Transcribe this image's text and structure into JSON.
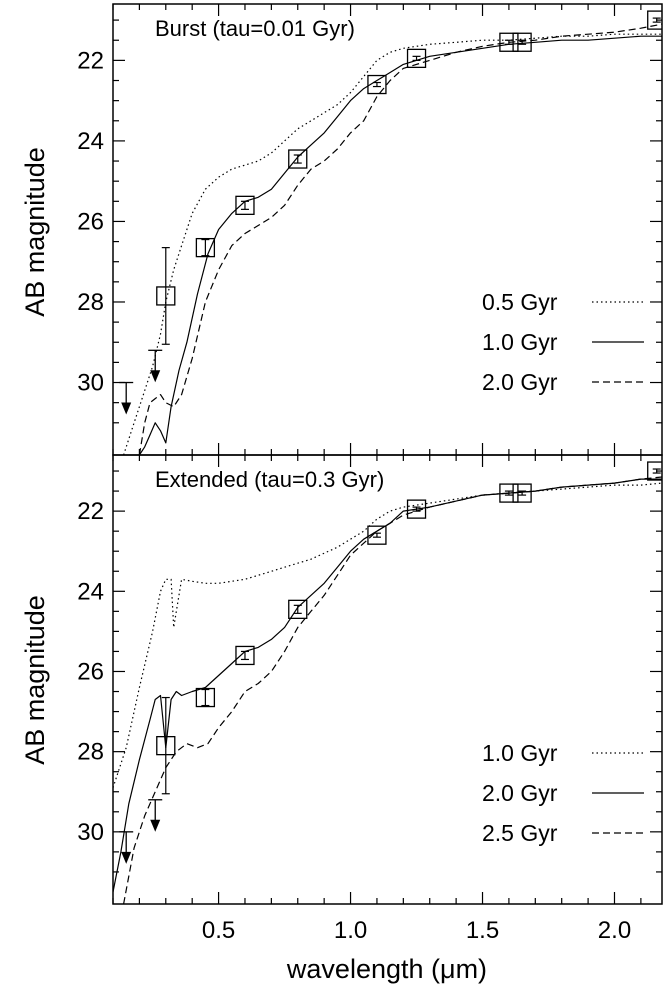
{
  "chart_data": [
    {
      "type": "line",
      "title": "Burst (tau=0.01 Gyr)",
      "xlabel": "",
      "ylabel": "AB magnitude",
      "xlim": [
        0.1,
        2.18
      ],
      "ylim": [
        31.8,
        20.6
      ],
      "y_inverted": true,
      "xticks": [
        "0.5",
        "1.0",
        "1.5",
        "2.0"
      ],
      "yticks": [
        "22",
        "24",
        "26",
        "28",
        "30"
      ],
      "legend_position": "bottom-right",
      "series": [
        {
          "name": "0.5 Gyr",
          "style": "dotted",
          "x": [
            0.14,
            0.18,
            0.22,
            0.25,
            0.28,
            0.3,
            0.33,
            0.36,
            0.4,
            0.45,
            0.5,
            0.55,
            0.6,
            0.65,
            0.7,
            0.75,
            0.8,
            0.85,
            0.9,
            0.95,
            1.0,
            1.05,
            1.1,
            1.15,
            1.2,
            1.3,
            1.4,
            1.5,
            1.6,
            1.7,
            1.8,
            1.9,
            2.0,
            2.1,
            2.18
          ],
          "y": [
            31.8,
            31.0,
            30.2,
            29.6,
            28.8,
            28.0,
            27.2,
            26.6,
            25.8,
            25.2,
            24.9,
            24.7,
            24.6,
            24.5,
            24.3,
            24.0,
            23.7,
            23.5,
            23.3,
            23.1,
            22.8,
            22.4,
            22.0,
            21.8,
            21.7,
            21.6,
            21.55,
            21.5,
            21.5,
            21.45,
            21.4,
            21.4,
            21.35,
            21.35,
            21.35
          ]
        },
        {
          "name": "1.0 Gyr",
          "style": "solid",
          "x": [
            0.2,
            0.22,
            0.24,
            0.26,
            0.28,
            0.3,
            0.32,
            0.35,
            0.38,
            0.42,
            0.46,
            0.5,
            0.55,
            0.6,
            0.65,
            0.7,
            0.75,
            0.8,
            0.85,
            0.9,
            0.95,
            1.0,
            1.05,
            1.1,
            1.15,
            1.2,
            1.3,
            1.4,
            1.5,
            1.6,
            1.7,
            1.8,
            1.9,
            2.0,
            2.1,
            2.18
          ],
          "y": [
            31.8,
            31.6,
            31.3,
            31.0,
            31.2,
            31.5,
            30.6,
            29.7,
            29.0,
            27.8,
            26.8,
            26.2,
            25.8,
            25.5,
            25.4,
            25.2,
            24.8,
            24.4,
            24.1,
            23.8,
            23.4,
            23.0,
            22.7,
            22.5,
            22.3,
            22.1,
            21.9,
            21.8,
            21.7,
            21.6,
            21.55,
            21.5,
            21.5,
            21.45,
            21.4,
            21.4
          ]
        },
        {
          "name": "2.0 Gyr",
          "style": "dashed",
          "x": [
            0.2,
            0.22,
            0.24,
            0.26,
            0.28,
            0.3,
            0.33,
            0.36,
            0.4,
            0.45,
            0.5,
            0.55,
            0.6,
            0.65,
            0.7,
            0.75,
            0.8,
            0.85,
            0.9,
            0.95,
            1.0,
            1.05,
            1.1,
            1.15,
            1.2,
            1.3,
            1.4,
            1.5,
            1.6,
            1.7,
            1.8,
            1.9,
            2.0,
            2.1,
            2.18
          ],
          "y": [
            31.8,
            31.0,
            30.5,
            30.4,
            30.3,
            30.5,
            30.6,
            30.3,
            29.4,
            28.0,
            27.2,
            26.6,
            26.3,
            26.1,
            25.9,
            25.6,
            25.1,
            24.7,
            24.5,
            24.2,
            23.8,
            23.5,
            22.9,
            22.5,
            22.2,
            22.0,
            21.8,
            21.65,
            21.55,
            21.5,
            21.4,
            21.35,
            21.3,
            21.2,
            21.1
          ]
        }
      ],
      "observations": {
        "x": [
          0.3,
          0.45,
          0.6,
          0.8,
          1.1,
          1.25,
          1.6,
          1.65,
          2.16
        ],
        "y": [
          27.85,
          26.65,
          25.6,
          24.45,
          22.6,
          21.95,
          21.55,
          21.55,
          21.0
        ],
        "err": [
          1.2,
          0.2,
          0.1,
          0.1,
          0.05,
          0.05,
          0.05,
          0.05,
          0.05
        ]
      },
      "upper_limits": {
        "x": [
          0.15,
          0.26
        ],
        "y": [
          30.0,
          29.2
        ]
      }
    },
    {
      "type": "line",
      "title": "Extended (tau=0.3 Gyr)",
      "xlabel": "wavelength (μm)",
      "ylabel": "AB magnitude",
      "xlim": [
        0.1,
        2.18
      ],
      "ylim": [
        31.8,
        20.6
      ],
      "y_inverted": true,
      "xticks": [
        "0.5",
        "1.0",
        "1.5",
        "2.0"
      ],
      "yticks": [
        "22",
        "24",
        "26",
        "28",
        "30"
      ],
      "legend_position": "bottom-right",
      "series": [
        {
          "name": "1.0 Gyr",
          "style": "dotted",
          "x": [
            0.1,
            0.15,
            0.2,
            0.25,
            0.28,
            0.3,
            0.32,
            0.33,
            0.36,
            0.4,
            0.45,
            0.5,
            0.55,
            0.6,
            0.65,
            0.7,
            0.75,
            0.8,
            0.85,
            0.9,
            0.95,
            1.0,
            1.05,
            1.1,
            1.15,
            1.2,
            1.3,
            1.4,
            1.5,
            1.6,
            1.7,
            1.8,
            1.9,
            2.0,
            2.1,
            2.18
          ],
          "y": [
            28.9,
            27.9,
            26.4,
            25.0,
            24.0,
            23.7,
            23.7,
            24.9,
            23.7,
            23.75,
            23.8,
            23.8,
            23.75,
            23.7,
            23.6,
            23.5,
            23.4,
            23.3,
            23.2,
            23.05,
            22.9,
            22.7,
            22.5,
            22.2,
            22.0,
            21.9,
            21.8,
            21.7,
            21.6,
            21.55,
            21.5,
            21.45,
            21.4,
            21.35,
            21.35,
            21.3
          ]
        },
        {
          "name": "2.0 Gyr",
          "style": "solid",
          "x": [
            0.1,
            0.13,
            0.16,
            0.2,
            0.24,
            0.26,
            0.28,
            0.3,
            0.32,
            0.34,
            0.36,
            0.4,
            0.45,
            0.5,
            0.55,
            0.6,
            0.65,
            0.7,
            0.75,
            0.8,
            0.85,
            0.9,
            0.95,
            1.0,
            1.05,
            1.1,
            1.15,
            1.2,
            1.3,
            1.4,
            1.5,
            1.6,
            1.7,
            1.8,
            1.9,
            2.0,
            2.1,
            2.18
          ],
          "y": [
            31.5,
            30.5,
            29.3,
            28.2,
            27.2,
            26.7,
            26.6,
            27.9,
            26.7,
            26.5,
            26.6,
            26.5,
            26.4,
            26.1,
            25.8,
            25.5,
            25.4,
            25.2,
            24.9,
            24.4,
            24.1,
            23.8,
            23.4,
            23.0,
            22.7,
            22.5,
            22.3,
            22.0,
            21.9,
            21.75,
            21.6,
            21.55,
            21.5,
            21.4,
            21.35,
            21.3,
            21.2,
            21.2
          ]
        },
        {
          "name": "2.5 Gyr",
          "style": "dashed",
          "x": [
            0.14,
            0.18,
            0.22,
            0.26,
            0.3,
            0.34,
            0.38,
            0.42,
            0.46,
            0.5,
            0.55,
            0.6,
            0.65,
            0.7,
            0.75,
            0.8,
            0.85,
            0.9,
            0.95,
            1.0,
            1.05,
            1.1,
            1.15,
            1.2,
            1.3,
            1.4,
            1.5,
            1.6,
            1.7,
            1.8,
            1.9,
            2.0,
            2.1,
            2.18
          ],
          "y": [
            31.8,
            30.4,
            29.6,
            29.0,
            28.4,
            28.0,
            27.8,
            27.9,
            27.8,
            27.4,
            27.0,
            26.5,
            26.3,
            26.0,
            25.5,
            24.9,
            24.5,
            24.1,
            23.6,
            23.1,
            22.8,
            22.5,
            22.3,
            22.1,
            21.9,
            21.75,
            21.6,
            21.55,
            21.5,
            21.4,
            21.35,
            21.3,
            21.2,
            21.15
          ]
        }
      ],
      "observations": {
        "x": [
          0.3,
          0.45,
          0.6,
          0.8,
          1.1,
          1.25,
          1.6,
          1.65,
          2.16
        ],
        "y": [
          27.85,
          26.65,
          25.6,
          24.45,
          22.6,
          21.95,
          21.55,
          21.55,
          21.0
        ],
        "err": [
          1.2,
          0.2,
          0.1,
          0.1,
          0.05,
          0.05,
          0.05,
          0.05,
          0.05
        ]
      },
      "upper_limits": {
        "x": [
          0.15,
          0.26
        ],
        "y": [
          30.0,
          29.2
        ]
      }
    }
  ]
}
